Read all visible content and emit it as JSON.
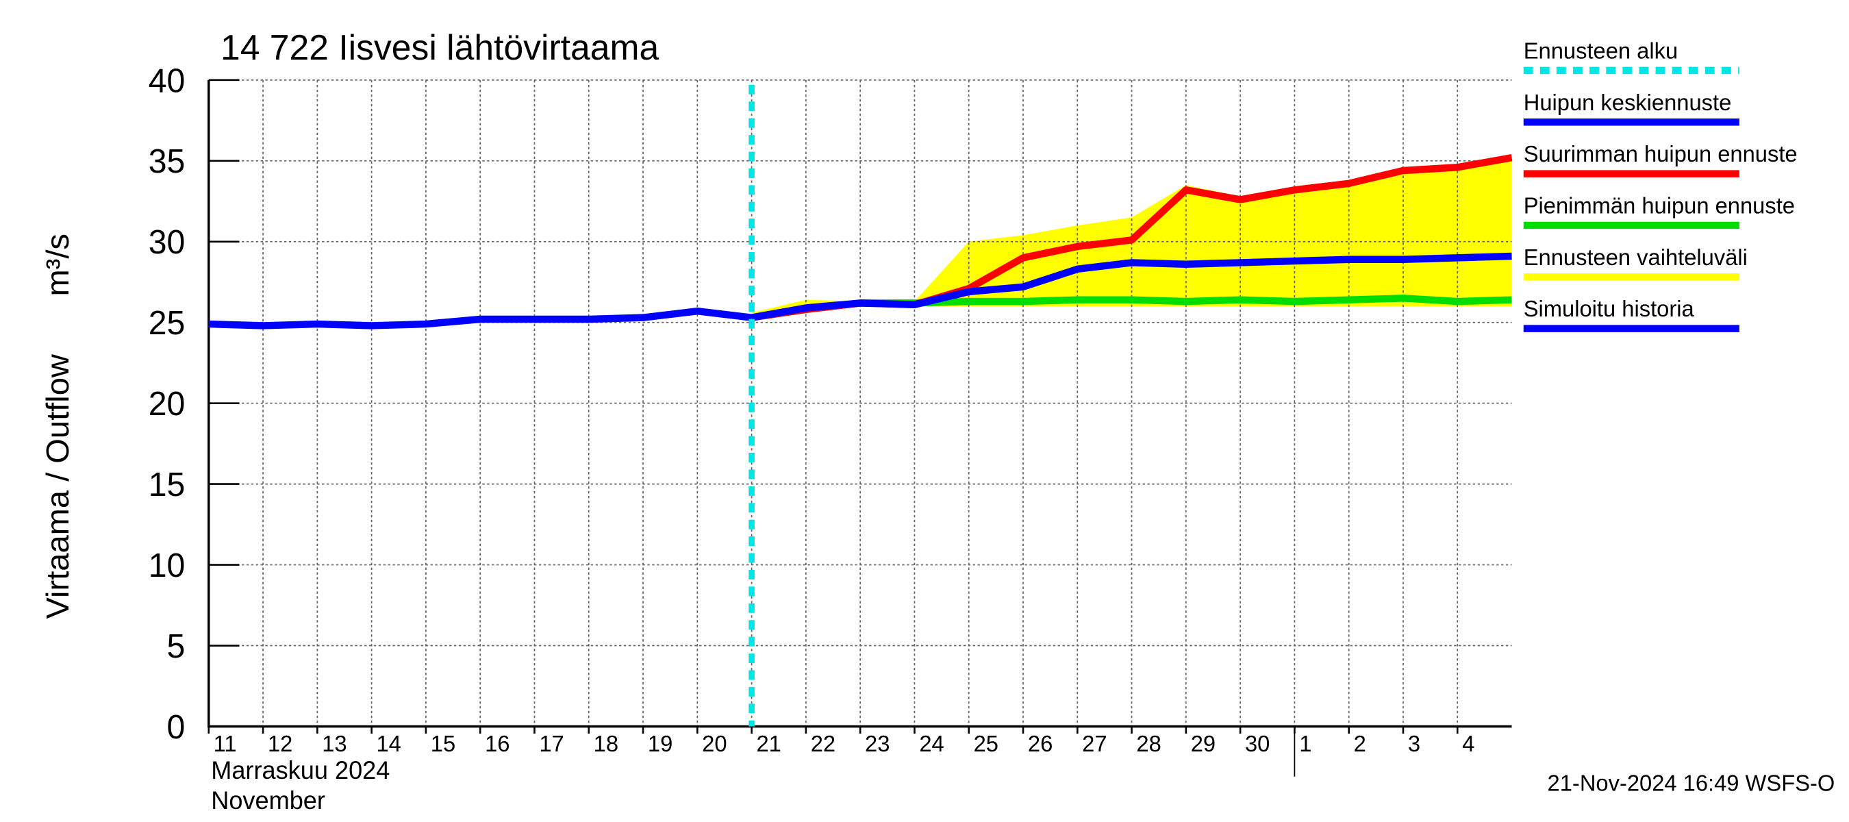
{
  "chart_data": {
    "type": "line",
    "title": "14 722 Iisvesi lähtövirtaama",
    "y_label": "Virtaama / Outflow",
    "y_unit": "m³/s",
    "x_label_fi": "Marraskuu 2024",
    "x_label_en": "November",
    "footer": "21-Nov-2024 16:49 WSFS-O",
    "x": [
      "2024-11-11",
      "2024-11-12",
      "2024-11-13",
      "2024-11-14",
      "2024-11-15",
      "2024-11-16",
      "2024-11-17",
      "2024-11-18",
      "2024-11-19",
      "2024-11-20",
      "2024-11-21",
      "2024-11-22",
      "2024-11-23",
      "2024-11-24",
      "2024-11-25",
      "2024-11-26",
      "2024-11-27",
      "2024-11-28",
      "2024-11-29",
      "2024-11-30",
      "2024-12-01",
      "2024-12-02",
      "2024-12-03",
      "2024-12-04",
      "2024-12-05"
    ],
    "xlim": [
      "2024-11-11",
      "2024-12-05"
    ],
    "xticks": [
      {
        "value": "2024-11-11",
        "label": "11"
      },
      {
        "value": "2024-11-12",
        "label": "12"
      },
      {
        "value": "2024-11-13",
        "label": "13"
      },
      {
        "value": "2024-11-14",
        "label": "14"
      },
      {
        "value": "2024-11-15",
        "label": "15"
      },
      {
        "value": "2024-11-16",
        "label": "16"
      },
      {
        "value": "2024-11-17",
        "label": "17"
      },
      {
        "value": "2024-11-18",
        "label": "18"
      },
      {
        "value": "2024-11-19",
        "label": "19"
      },
      {
        "value": "2024-11-20",
        "label": "20"
      },
      {
        "value": "2024-11-21",
        "label": "21"
      },
      {
        "value": "2024-11-22",
        "label": "22"
      },
      {
        "value": "2024-11-23",
        "label": "23"
      },
      {
        "value": "2024-11-24",
        "label": "24"
      },
      {
        "value": "2024-11-25",
        "label": "25"
      },
      {
        "value": "2024-11-26",
        "label": "26"
      },
      {
        "value": "2024-11-27",
        "label": "27"
      },
      {
        "value": "2024-11-28",
        "label": "28"
      },
      {
        "value": "2024-11-29",
        "label": "29"
      },
      {
        "value": "2024-11-30",
        "label": "30"
      },
      {
        "value": "2024-12-01",
        "label": "1"
      },
      {
        "value": "2024-12-02",
        "label": "2"
      },
      {
        "value": "2024-12-03",
        "label": "3"
      },
      {
        "value": "2024-12-04",
        "label": "4"
      }
    ],
    "ylim": [
      0,
      40
    ],
    "yticks": [
      0,
      5,
      10,
      15,
      20,
      25,
      30,
      35,
      40
    ],
    "grid": true,
    "forecast_start": {
      "name": "Ennusteen alku",
      "color": "#00e5e5",
      "x": "2024-11-21"
    },
    "band": {
      "name": "Ennusteen vaihteluväli",
      "color": "#ffff00",
      "values": [
        null,
        null,
        null,
        null,
        null,
        null,
        null,
        null,
        null,
        null,
        25.6,
        26.4,
        26.3,
        26.3,
        30.0,
        30.4,
        31.0,
        31.5,
        33.5,
        32.8,
        33.3,
        33.8,
        34.5,
        34.7,
        35.3
      ],
      "lower": [
        null,
        null,
        null,
        null,
        null,
        null,
        null,
        null,
        null,
        null,
        25.3,
        25.8,
        26.0,
        26.0,
        26.0,
        26.0,
        26.0,
        26.0,
        26.0,
        26.0,
        26.0,
        26.0,
        26.0,
        26.0,
        26.0
      ]
    },
    "series": [
      {
        "name": "Huipun keskiennuste",
        "color": "#0000ff",
        "values": [
          null,
          null,
          null,
          null,
          null,
          null,
          null,
          null,
          null,
          null,
          25.3,
          25.9,
          26.2,
          26.1,
          26.9,
          27.2,
          28.3,
          28.7,
          28.6,
          28.7,
          28.8,
          28.9,
          28.9,
          29.0,
          29.1
        ]
      },
      {
        "name": "Suurimman huipun ennuste",
        "color": "#ff0000",
        "values": [
          null,
          null,
          null,
          null,
          null,
          null,
          null,
          null,
          null,
          null,
          25.3,
          25.8,
          26.2,
          26.1,
          27.1,
          29.0,
          29.7,
          30.1,
          33.2,
          32.6,
          33.2,
          33.6,
          34.4,
          34.6,
          35.2
        ]
      },
      {
        "name": "Pienimmän huipun ennuste",
        "color": "#00dd00",
        "values": [
          null,
          null,
          null,
          null,
          null,
          null,
          null,
          null,
          null,
          null,
          25.3,
          25.8,
          26.2,
          26.2,
          26.3,
          26.3,
          26.4,
          26.4,
          26.3,
          26.4,
          26.3,
          26.4,
          26.5,
          26.3,
          26.4
        ]
      },
      {
        "name": "Simuloitu historia",
        "color": "#0000ff",
        "values": [
          24.9,
          24.8,
          24.9,
          24.8,
          24.9,
          25.2,
          25.2,
          25.2,
          25.3,
          25.7,
          25.3,
          null,
          null,
          null,
          null,
          null,
          null,
          null,
          null,
          null,
          null,
          null,
          null,
          null,
          null
        ]
      }
    ],
    "legend_order": [
      "forecast_start",
      "series.0",
      "series.1",
      "series.2",
      "band",
      "series.3"
    ]
  }
}
